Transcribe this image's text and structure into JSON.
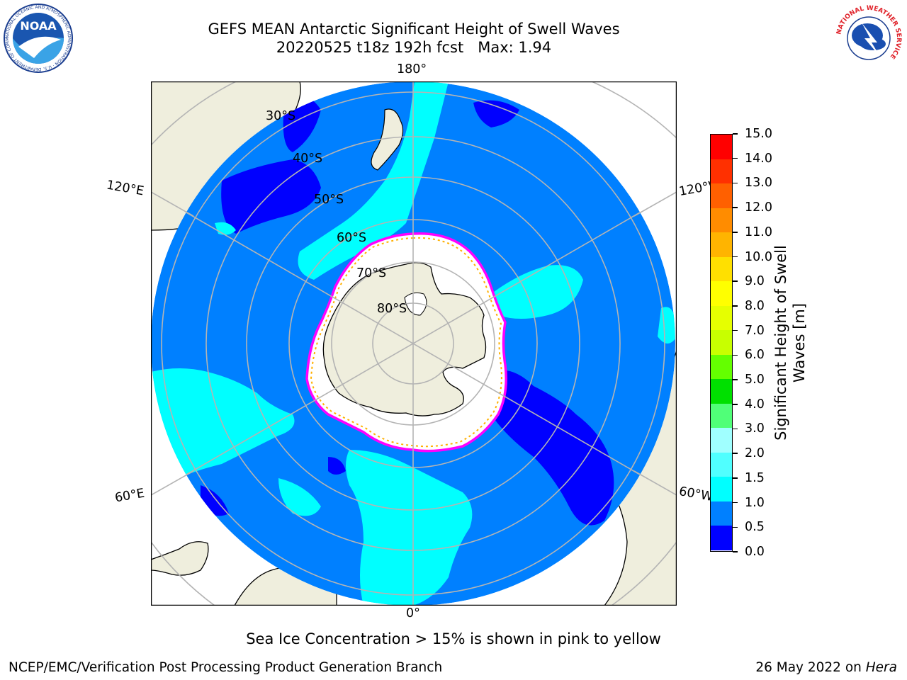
{
  "header": {
    "title_line1": "GEFS MEAN Antarctic Significant Height of Swell Waves",
    "title_line2": "20220525 t18z 192h fcst   Max: 1.94"
  },
  "logos": {
    "noaa_text": "NOAA",
    "noaa_ring": "NATIONAL OCEANIC AND ATMOSPHERIC ADMINISTRATION · U.S. DEPARTMENT OF COMMERCE ·",
    "nws_ring": "NATIONAL WEATHER SERVICE"
  },
  "map": {
    "projection": "south-polar-stereographic",
    "longitude_labels": [
      "180°",
      "120°E",
      "120°W",
      "60°E",
      "60°W",
      "0°"
    ],
    "latitude_labels": [
      "30°S",
      "40°S",
      "50°S",
      "60°S",
      "70°S",
      "80°S"
    ],
    "colors": {
      "land": "#efeedd",
      "ocean_0_0_5": "#0000ff",
      "ocean_0_5_1_0": "#0080ff",
      "ocean_1_0_1_5": "#00ffff",
      "ice": "#ffffff",
      "ice_edge_pink": "#ff00ff",
      "ice_edge_yellow": "#ffb000",
      "grid": "#b4b4b4"
    }
  },
  "colorbar": {
    "label": "Significant Height of Swell Waves [m]",
    "ticks": [
      "15.0",
      "14.0",
      "13.0",
      "12.0",
      "11.0",
      "10.0",
      "9.0",
      "8.0",
      "7.0",
      "6.0",
      "5.0",
      "4.0",
      "3.0",
      "2.0",
      "1.5",
      "1.0",
      "0.5",
      "0.0"
    ],
    "bands": [
      {
        "range": "14.0-15.0",
        "color": "#ff0000"
      },
      {
        "range": "13.0-14.0",
        "color": "#ff3000"
      },
      {
        "range": "12.0-13.0",
        "color": "#ff6000"
      },
      {
        "range": "11.0-12.0",
        "color": "#ff8c00"
      },
      {
        "range": "10.0-11.0",
        "color": "#ffb400"
      },
      {
        "range": "9.0-10.0",
        "color": "#ffe000"
      },
      {
        "range": "8.0-9.0",
        "color": "#ffff00"
      },
      {
        "range": "7.0-8.0",
        "color": "#e6ff00"
      },
      {
        "range": "6.0-7.0",
        "color": "#c8ff00"
      },
      {
        "range": "5.0-6.0",
        "color": "#64ff00"
      },
      {
        "range": "4.0-5.0",
        "color": "#00e000"
      },
      {
        "range": "3.0-4.0",
        "color": "#50ff78"
      },
      {
        "range": "2.0-3.0",
        "color": "#a0ffff"
      },
      {
        "range": "1.5-2.0",
        "color": "#50ffff"
      },
      {
        "range": "1.0-1.5",
        "color": "#00ffff"
      },
      {
        "range": "0.5-1.0",
        "color": "#0080ff"
      },
      {
        "range": "0.0-0.5",
        "color": "#0000ff"
      }
    ]
  },
  "caption": "Sea Ice Concentration > 15% is shown in pink to yellow",
  "footer": {
    "left": "NCEP/EMC/Verification Post Processing Product Generation Branch",
    "date": "26 May 2022 on ",
    "machine": "Hera"
  }
}
